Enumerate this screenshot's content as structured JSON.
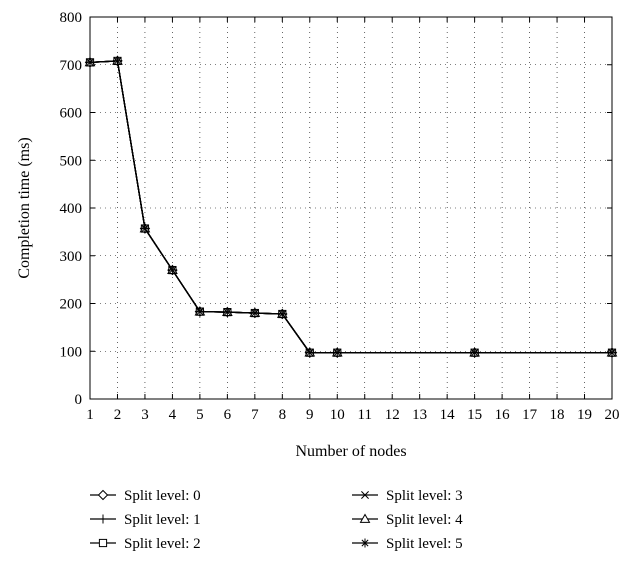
{
  "chart_data": {
    "type": "line",
    "title": "",
    "xlabel": "Number of nodes",
    "ylabel": "Completion time (ms)",
    "xlim": [
      1,
      20
    ],
    "ylim": [
      0,
      800
    ],
    "x_ticks": [
      "1",
      "2",
      "3",
      "4",
      "5",
      "6",
      "7",
      "8",
      "9",
      "10",
      "11",
      "12",
      "13",
      "14",
      "15",
      "16",
      "17",
      "18",
      "19",
      "20"
    ],
    "y_ticks": [
      "0",
      "100",
      "200",
      "300",
      "400",
      "500",
      "600",
      "700",
      "800"
    ],
    "grid": true,
    "legend_position": "bottom",
    "x": [
      1,
      2,
      3,
      4,
      5,
      6,
      7,
      8,
      9,
      10,
      15,
      20
    ],
    "series": [
      {
        "name": "Split level: 0",
        "marker": "diamond",
        "values": [
          705,
          708,
          357,
          270,
          183,
          182,
          180,
          178,
          97,
          97,
          97,
          97
        ]
      },
      {
        "name": "Split level: 1",
        "marker": "plus",
        "values": [
          705,
          708,
          357,
          270,
          183,
          182,
          180,
          178,
          97,
          97,
          97,
          97
        ]
      },
      {
        "name": "Split level: 2",
        "marker": "square",
        "values": [
          705,
          708,
          357,
          270,
          183,
          182,
          180,
          178,
          97,
          97,
          97,
          97
        ]
      },
      {
        "name": "Split level: 3",
        "marker": "x",
        "values": [
          705,
          708,
          357,
          270,
          183,
          182,
          180,
          178,
          97,
          97,
          97,
          97
        ]
      },
      {
        "name": "Split level: 4",
        "marker": "triangle",
        "values": [
          705,
          708,
          357,
          270,
          183,
          182,
          180,
          178,
          97,
          97,
          97,
          97
        ]
      },
      {
        "name": "Split level: 5",
        "marker": "asterisk",
        "values": [
          705,
          708,
          357,
          270,
          183,
          182,
          180,
          178,
          97,
          97,
          97,
          97
        ]
      }
    ]
  }
}
